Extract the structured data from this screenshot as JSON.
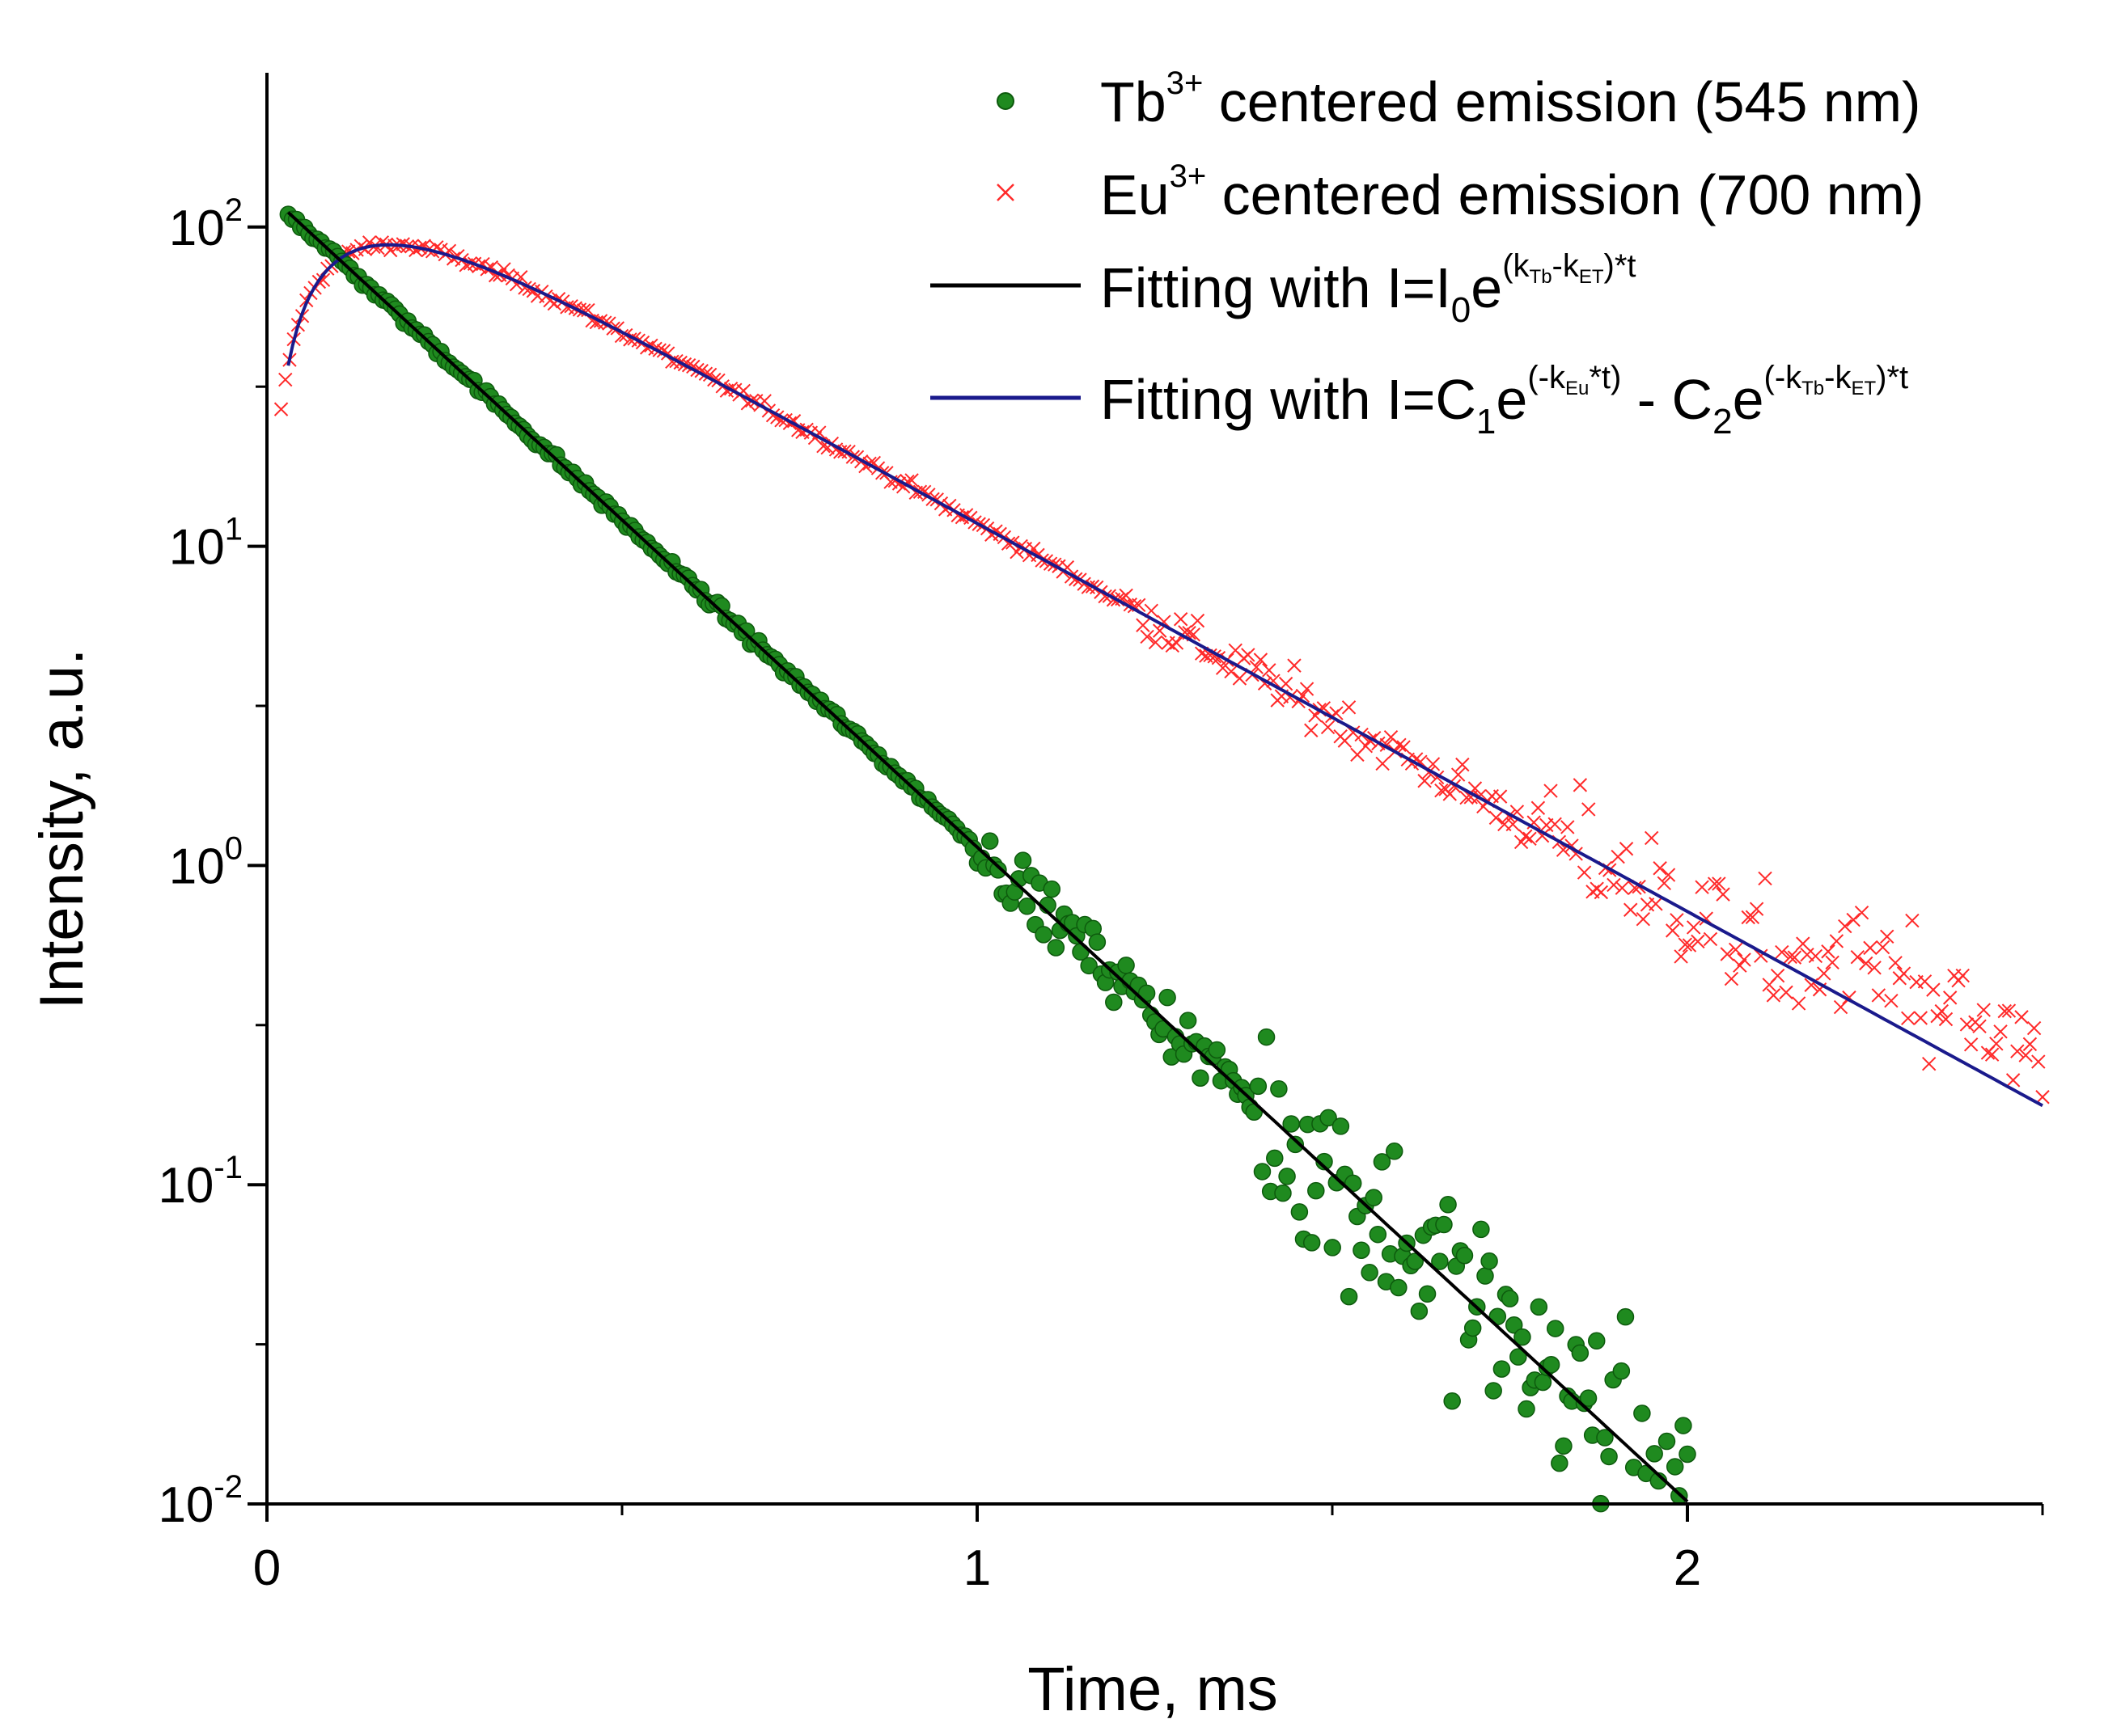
{
  "chart_data": {
    "type": "scatter",
    "title": "",
    "xlabel": "Time, ms",
    "ylabel": "Intensity, a.u.",
    "xlim": [
      0,
      2.5
    ],
    "ylim_log10": [
      -2,
      2.6
    ],
    "yscale": "log",
    "x_ticks": [
      {
        "value": 0,
        "label": "0"
      },
      {
        "value": 1,
        "label": "1"
      },
      {
        "value": 2,
        "label": "2"
      }
    ],
    "y_ticks": [
      {
        "exp": 2,
        "base": "10",
        "sup": "2"
      },
      {
        "exp": 1,
        "base": "10",
        "sup": "1"
      },
      {
        "exp": 0,
        "base": "10",
        "sup": "0"
      },
      {
        "exp": -1,
        "base": "10",
        "sup": "-1"
      },
      {
        "exp": -2,
        "base": "10",
        "sup": "-2"
      }
    ],
    "series": [
      {
        "name": "Tb3+ centered emission (545 nm)",
        "kind": "scatter-circle",
        "color": "#1f8a1f",
        "model": {
          "I0": 128,
          "k": 4.72
        },
        "x_range": [
          0.03,
          2.0
        ],
        "points_sampled": 340
      },
      {
        "name": "Eu3+ centered emission (700 nm)",
        "kind": "scatter-x",
        "color": "#ff2222",
        "model": {
          "C1": 194,
          "kEu": 2.8,
          "C2": 194,
          "k2": 10.5
        },
        "x_range": [
          0.02,
          2.5
        ],
        "points_sampled": 420
      },
      {
        "name": "Fitting with I=I0e^((kTb-kET)*t)",
        "kind": "line",
        "color": "#000000",
        "model": {
          "I0": 128,
          "k": 4.72
        },
        "x_range": [
          0.03,
          2.0
        ]
      },
      {
        "name": "Fitting with I=C1e^(-kEu*t) - C2e^((-kTb-kET)*t)",
        "kind": "line",
        "color": "#1a1a8c",
        "model": {
          "C1": 194,
          "kEu": 2.8,
          "C2": 194,
          "k2": 10.5
        },
        "x_range": [
          0.03,
          2.5
        ]
      }
    ],
    "legend": {
      "placement": "top-right",
      "entries": [
        {
          "text": "Tb",
          "sup": "3+",
          "rest": " centered emission (545 nm)"
        },
        {
          "text": "Eu",
          "sup": "3+",
          "rest": " centered emission (700 nm)"
        },
        {
          "text": "Fitting with I=I",
          "sub": "0",
          "mid": "e",
          "exp_html": "(k",
          "exp_sub1": "Tb",
          "exp_mid": "-k",
          "exp_sub2": "ET",
          "exp_end": ")*t"
        },
        {
          "text": "Fitting with I=C",
          "sub": "1",
          "mid": "e",
          "exp_a": "(-k",
          "exp_a_sub": "Eu",
          "exp_a_end": "*t)",
          "dash": " - C",
          "sub2": "2",
          "mid2": "e",
          "exp_b": "(-k",
          "exp_b_sub1": "Tb",
          "exp_b_mid": "-k",
          "exp_b_sub2": "ET",
          "exp_b_end": ")*t"
        }
      ]
    }
  },
  "colors": {
    "tb": "#1f8a1f",
    "tb_edge": "#0d5a0d",
    "eu": "#ff2a2a",
    "fit_tb": "#000000",
    "fit_eu": "#1a1a8c"
  }
}
